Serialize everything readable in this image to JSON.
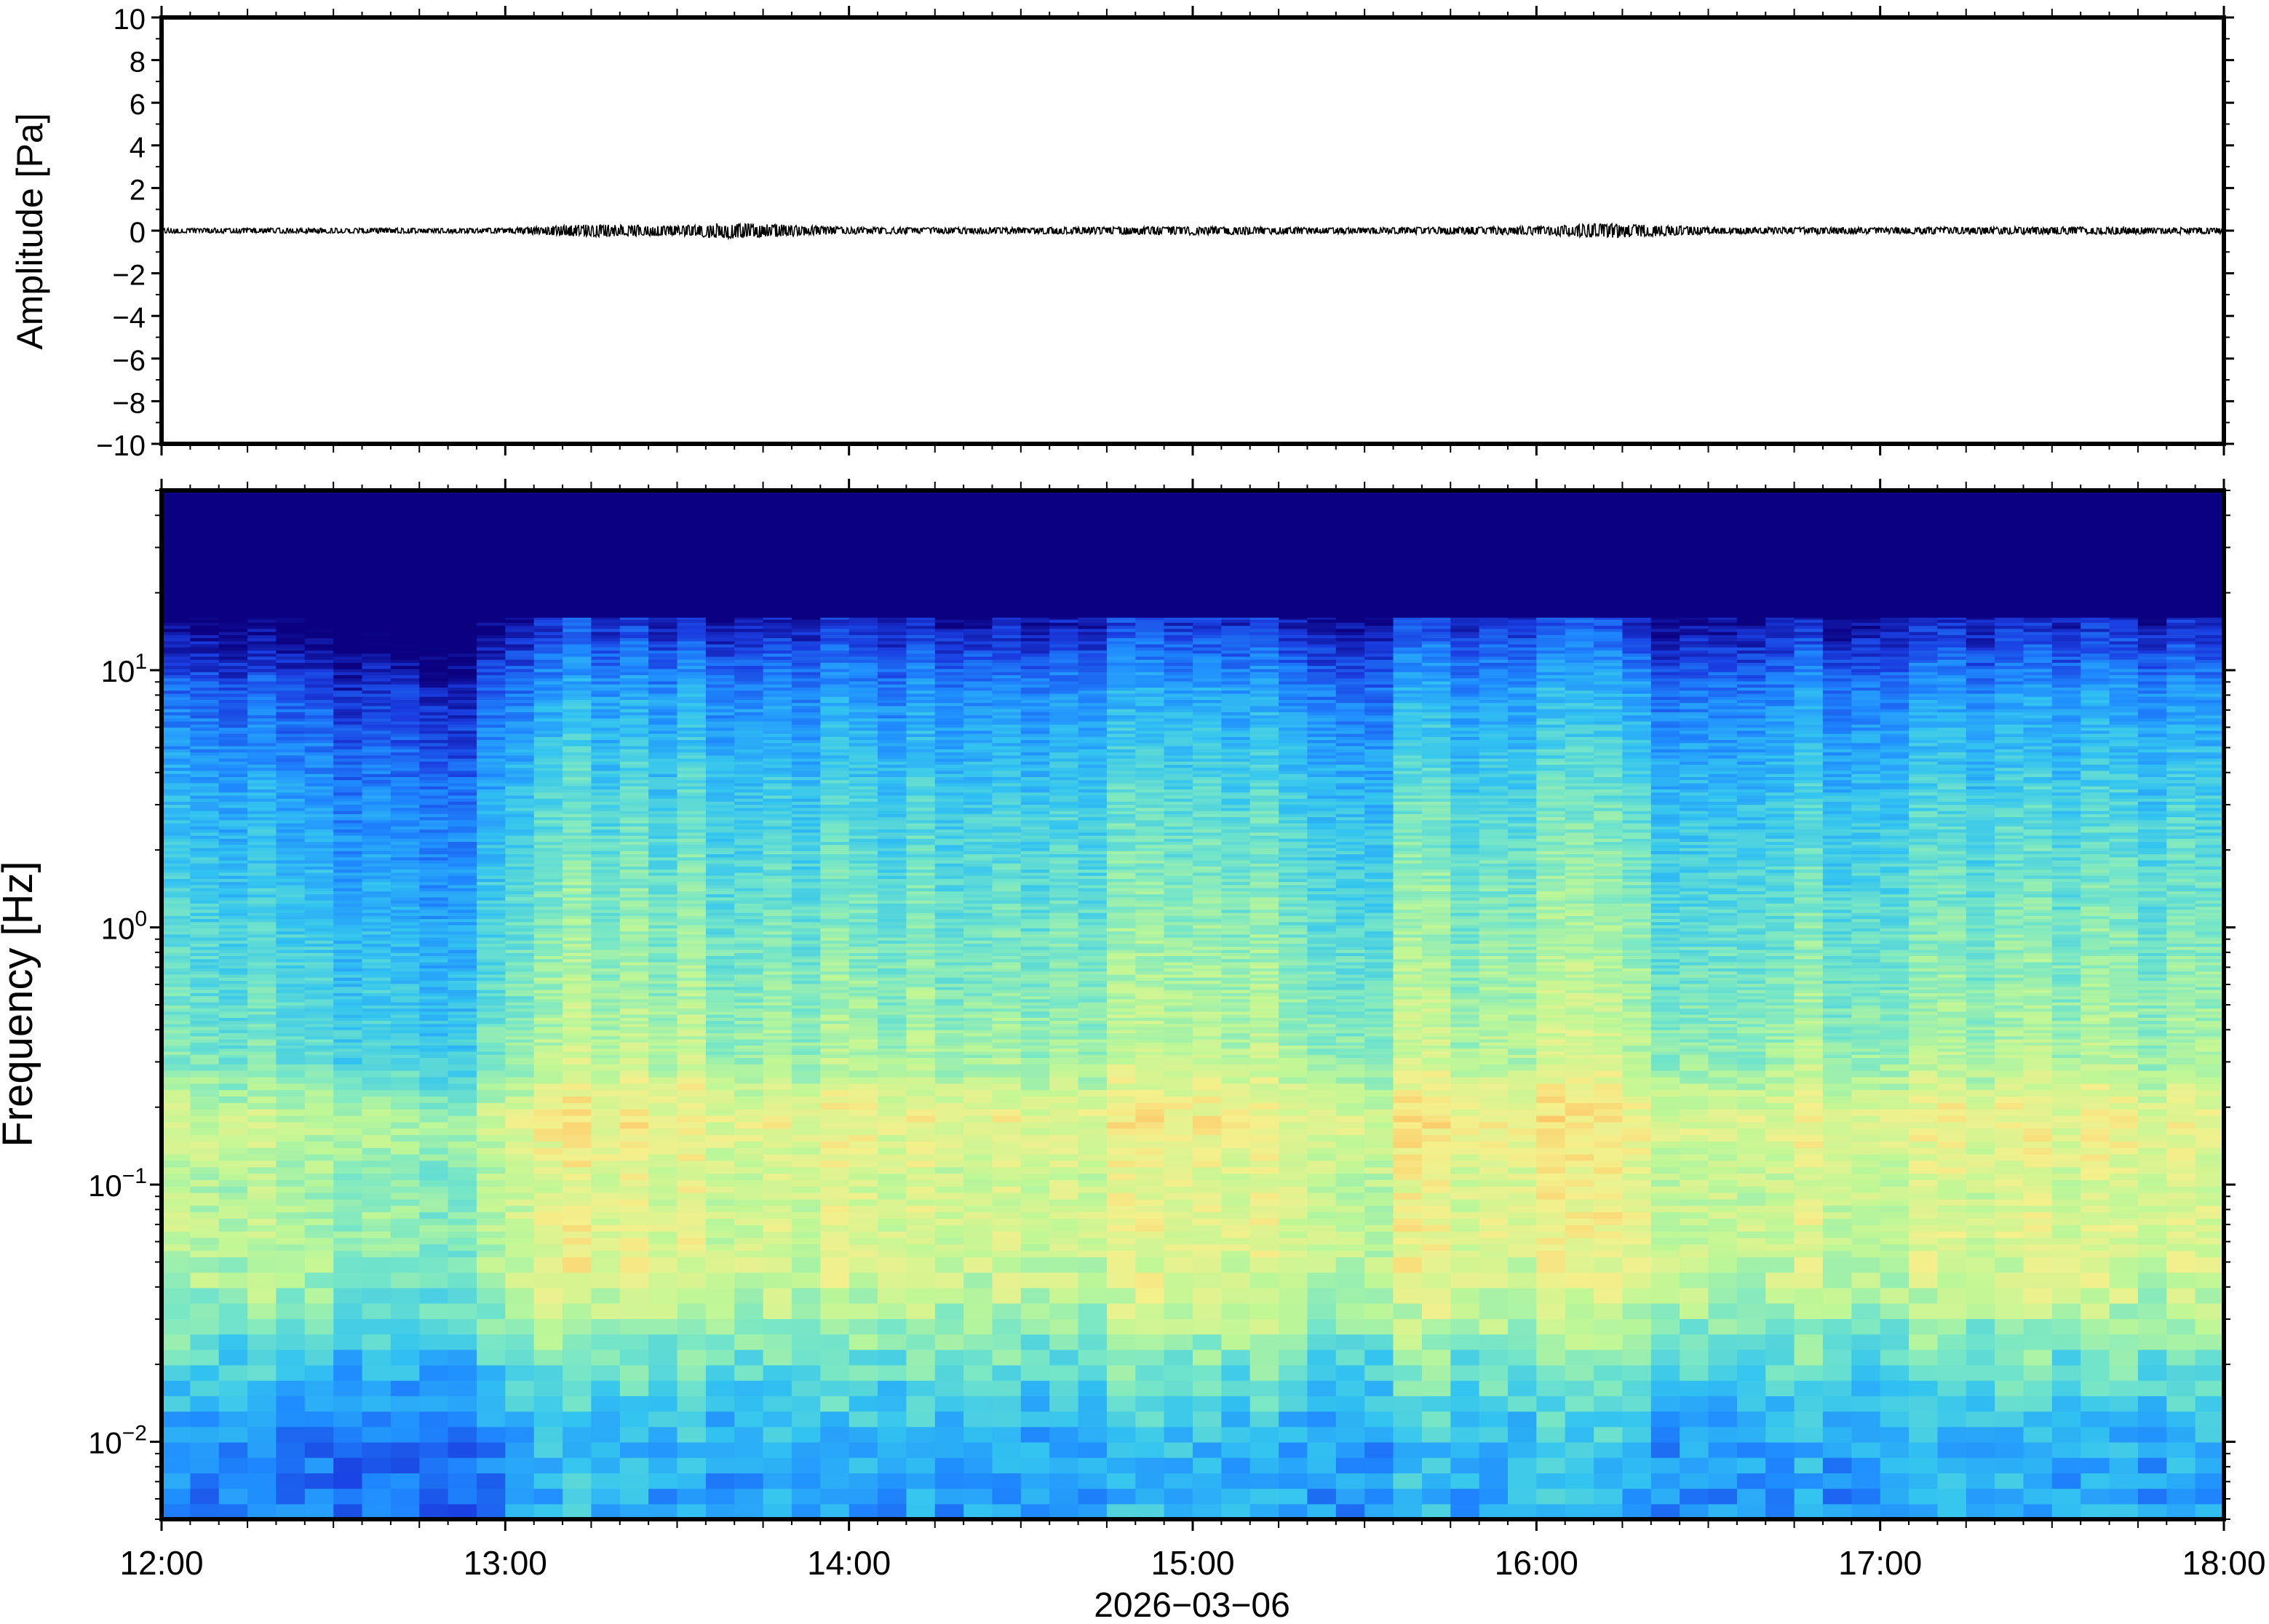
{
  "figure": {
    "date_label": "2026−03−06",
    "x_tick_labels": [
      "12:00",
      "13:00",
      "14:00",
      "15:00",
      "16:00",
      "17:00",
      "18:00"
    ]
  },
  "colormap": [
    "#0b0080",
    "#1a3de0",
    "#1f8bff",
    "#33c4f0",
    "#76e6c7",
    "#bff796",
    "#f4f08c",
    "#ffc060",
    "#ff8a3c"
  ],
  "chart_data": [
    {
      "type": "line",
      "panel": "waveform",
      "ylabel": "Amplitude [Pa]",
      "xlabel": "2026−03−06",
      "xlim": [
        "12:00",
        "18:00"
      ],
      "ylim": [
        -10,
        10
      ],
      "y_ticks": [
        10,
        8,
        6,
        4,
        2,
        0,
        -2,
        -4,
        -6,
        -8,
        -10
      ],
      "y_tick_labels": [
        "10",
        "8",
        "6",
        "4",
        "2",
        "0",
        "−2",
        "−4",
        "−6",
        "−8",
        "−10"
      ],
      "series": [
        {
          "color": "#000000",
          "x_hours": [
            12.0,
            12.5,
            13.0,
            13.25,
            13.5,
            13.65,
            14.0,
            14.5,
            15.0,
            15.5,
            16.0,
            16.2,
            16.5,
            17.0,
            17.5,
            18.0
          ],
          "envelope_pa": [
            0.12,
            0.12,
            0.12,
            0.3,
            0.22,
            0.38,
            0.16,
            0.14,
            0.2,
            0.14,
            0.2,
            0.35,
            0.16,
            0.15,
            0.18,
            0.14
          ]
        }
      ],
      "grid": false
    },
    {
      "type": "heatmap",
      "panel": "spectrogram",
      "ylabel": "Frequency [Hz]",
      "xlabel": "2026−03−06",
      "xlim": [
        "12:00",
        "18:00"
      ],
      "ylim_hz": [
        0.005,
        50
      ],
      "y_scale": "log",
      "y_ticks_hz": [
        0.01,
        0.1,
        1,
        10
      ],
      "y_tick_labels": [
        {
          "base": "10",
          "exp": "−2"
        },
        {
          "base": "10",
          "exp": "−1"
        },
        {
          "base": "10",
          "exp": "0"
        },
        {
          "base": "10",
          "exp": "1"
        }
      ],
      "x_tick_labels": [
        "12:00",
        "13:00",
        "14:00",
        "15:00",
        "16:00",
        "17:00",
        "18:00"
      ],
      "description_of_power": "relative power shown with a blue-to-red colormap; highest power near 0.05-0.2 Hz",
      "frequency_profile_hz": [
        0.006,
        0.01,
        0.02,
        0.04,
        0.07,
        0.1,
        0.18,
        0.3,
        1,
        3,
        8,
        12,
        15,
        50
      ],
      "frequency_profile_level": [
        0.28,
        0.3,
        0.45,
        0.62,
        0.66,
        0.64,
        0.7,
        0.56,
        0.47,
        0.38,
        0.24,
        0.12,
        0.04,
        0.0
      ],
      "time_columns_hours": [
        12.0,
        12.33,
        12.6,
        12.9,
        13.12,
        13.3,
        13.7,
        14.0,
        14.5,
        14.9,
        15.2,
        15.5,
        15.62,
        16.0,
        16.2,
        16.4,
        16.7,
        17.0,
        17.4,
        17.7,
        18.0
      ],
      "time_column_level_offset": [
        0.0,
        -0.02,
        -0.08,
        -0.1,
        0.06,
        0.07,
        0.03,
        0.02,
        0.02,
        0.05,
        0.04,
        -0.02,
        0.05,
        0.07,
        0.06,
        -0.02,
        0.02,
        0.0,
        0.03,
        0.02,
        0.0
      ]
    }
  ]
}
